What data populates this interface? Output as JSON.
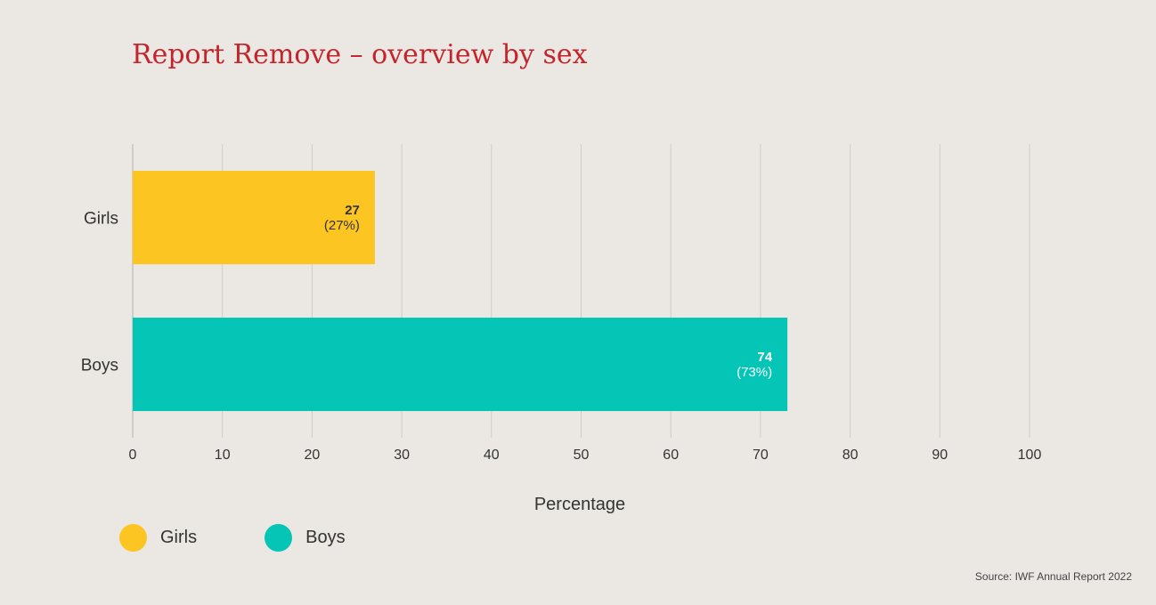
{
  "chart_data": {
    "type": "bar",
    "orientation": "horizontal",
    "title": "Report Remove – overview by sex",
    "xlabel": "Percentage",
    "ylabel": "",
    "xlim": [
      0,
      100
    ],
    "x_ticks": [
      "0",
      "10",
      "20",
      "30",
      "40",
      "50",
      "60",
      "70",
      "80",
      "90",
      "100"
    ],
    "grid": "vertical",
    "legend_position": "bottom-left",
    "categories": [
      "Girls",
      "Boys"
    ],
    "values": [
      27,
      73
    ],
    "data_labels": [
      {
        "count": "27",
        "percent": "(27%)"
      },
      {
        "count": "74",
        "percent": "(73%)"
      }
    ],
    "colors": [
      "#fcc521",
      "#05c5b6"
    ],
    "label_colors": [
      "#333333",
      "#ffffff"
    ],
    "legend": [
      {
        "label": "Girls",
        "color": "#fcc521"
      },
      {
        "label": "Boys",
        "color": "#05c5b6"
      }
    ],
    "source": "Source: IWF Annual Report 2022"
  }
}
